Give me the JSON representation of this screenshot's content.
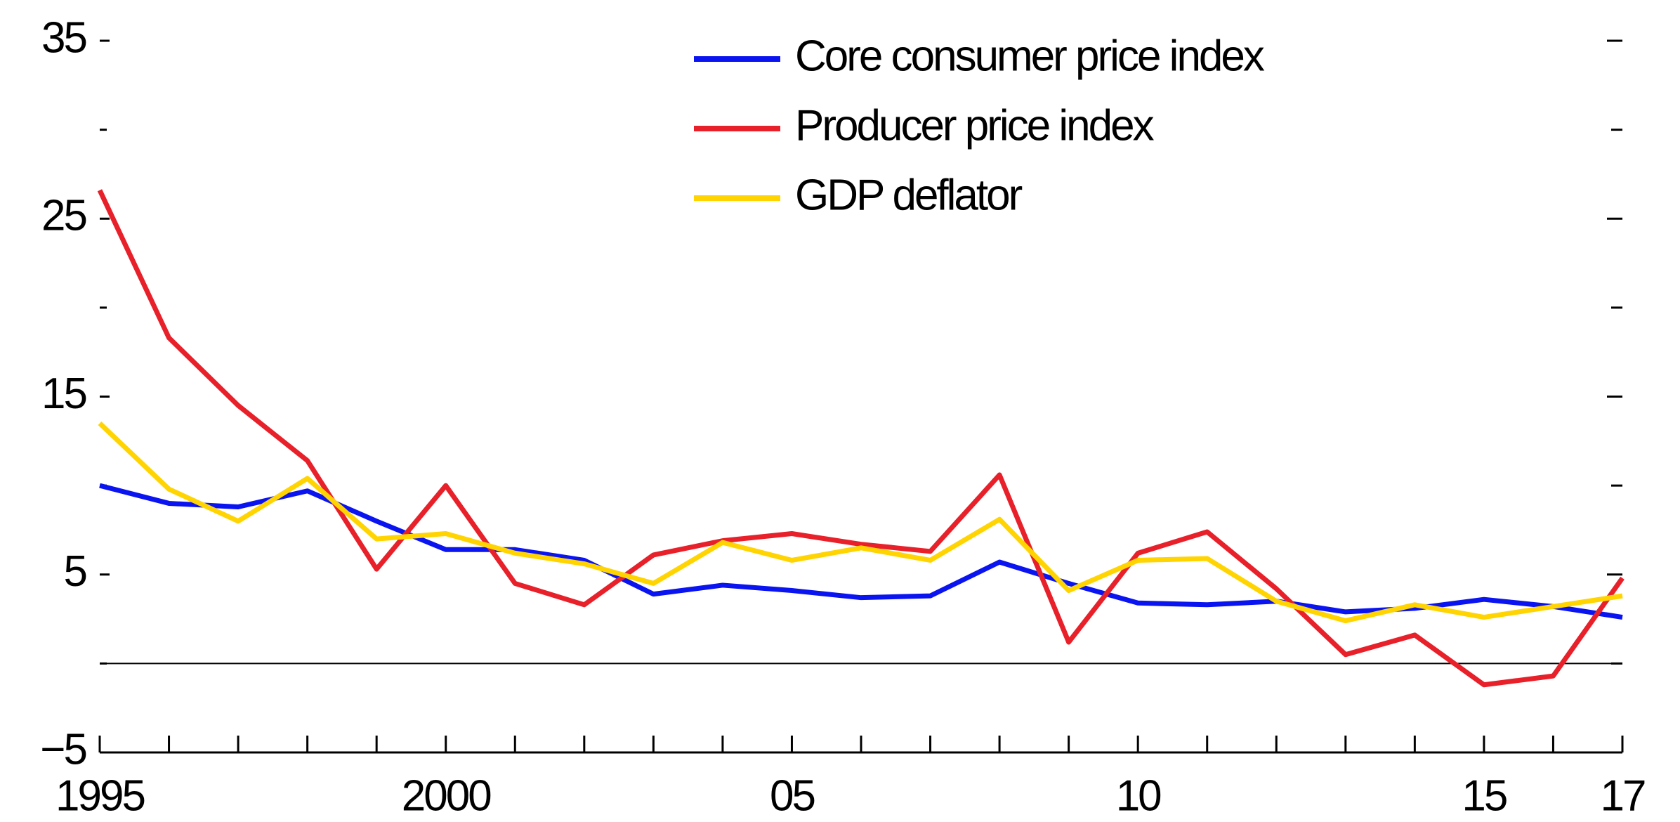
{
  "chart_data": {
    "type": "line",
    "x": [
      1995,
      1996,
      1997,
      1998,
      1999,
      2000,
      2001,
      2002,
      2003,
      2004,
      2005,
      2006,
      2007,
      2008,
      2009,
      2010,
      2011,
      2012,
      2013,
      2014,
      2015,
      2016,
      2017
    ],
    "series": [
      {
        "name": "Core consumer price index",
        "color": "#0a14f0",
        "values": [
          10.0,
          9.0,
          8.8,
          9.7,
          8.0,
          6.4,
          6.4,
          5.8,
          3.9,
          4.4,
          4.1,
          3.7,
          3.8,
          5.7,
          4.5,
          3.4,
          3.3,
          3.5,
          2.9,
          3.1,
          3.6,
          3.2,
          2.6
        ]
      },
      {
        "name": "Producer price index",
        "color": "#e8202a",
        "values": [
          26.6,
          18.3,
          14.5,
          11.4,
          5.3,
          10.0,
          4.5,
          3.3,
          6.1,
          6.9,
          7.3,
          6.7,
          6.3,
          10.6,
          1.2,
          6.2,
          7.4,
          4.2,
          0.5,
          1.6,
          -1.2,
          -0.7,
          4.8
        ]
      },
      {
        "name": "GDP deflator",
        "color": "#ffd400",
        "values": [
          13.5,
          9.8,
          8.0,
          10.4,
          7.0,
          7.3,
          6.2,
          5.6,
          4.5,
          6.8,
          5.8,
          6.5,
          5.8,
          8.1,
          4.1,
          5.8,
          5.9,
          3.5,
          2.4,
          3.3,
          2.6,
          3.2,
          3.8
        ]
      }
    ],
    "xlim": [
      1995,
      2017
    ],
    "xticks": [
      {
        "value": 1995,
        "label": "1995"
      },
      2000,
      {
        "value": 2005,
        "label": "05"
      },
      {
        "value": 2010,
        "label": "10"
      },
      {
        "value": 2015,
        "label": "15"
      },
      {
        "value": 2017,
        "label": "17"
      }
    ],
    "xminorticks": [
      1996,
      1997,
      1998,
      1999,
      2001,
      2002,
      2003,
      2004,
      2006,
      2007,
      2008,
      2009,
      2011,
      2012,
      2013,
      2014,
      2016
    ],
    "ylim": [
      -5,
      35
    ],
    "yticks": [
      {
        "value": -5,
        "label": "−5"
      },
      5,
      15,
      25,
      35
    ],
    "yminorticks": [
      0,
      10,
      20,
      30
    ],
    "zero_line": true,
    "legend": "top-center"
  }
}
